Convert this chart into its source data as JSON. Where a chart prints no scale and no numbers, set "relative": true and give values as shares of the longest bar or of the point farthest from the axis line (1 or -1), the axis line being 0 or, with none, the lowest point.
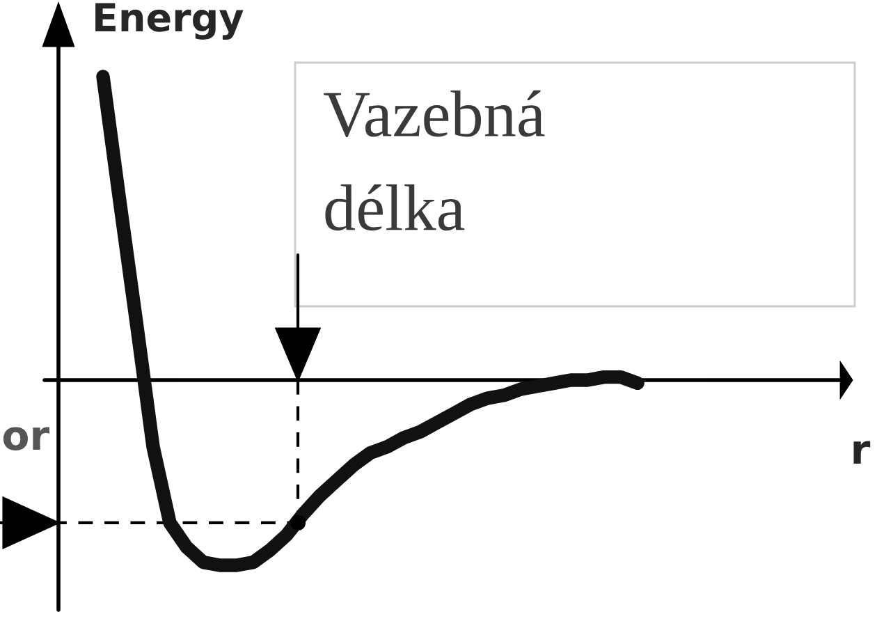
{
  "chart_data": {
    "type": "line",
    "relative": true,
    "ylabel": "Energy",
    "categories": [
      null,
      null,
      null,
      null,
      null,
      null,
      null,
      null,
      null,
      null,
      null,
      null,
      null,
      null,
      null,
      null,
      null,
      null,
      null,
      null,
      null,
      null,
      null,
      null,
      null,
      null,
      null,
      null,
      null,
      null,
      null,
      null,
      null
    ],
    "series": [
      {
        "color": "#111111",
        "values": [
          1.0,
          0.59,
          0.19,
          -0.22,
          -0.47,
          -0.55,
          -0.6,
          -0.61,
          -0.61,
          -0.6,
          -0.56,
          -0.51,
          -0.44,
          -0.38,
          -0.33,
          -0.28,
          -0.24,
          -0.22,
          -0.19,
          -0.17,
          -0.14,
          -0.11,
          -0.08,
          -0.06,
          -0.05,
          -0.03,
          -0.02,
          -0.01,
          0,
          0,
          0.01,
          0.01,
          -0.01
        ]
      }
    ],
    "ref_lines": [
      {
        "axis": "y",
        "value": -0.47,
        "line_style": "dashed",
        "color": "#000000"
      }
    ],
    "annotations": [
      "Vazebná délka",
      "or",
      "r"
    ],
    "legend": false,
    "marker": "none",
    "line_style": "solid"
  }
}
